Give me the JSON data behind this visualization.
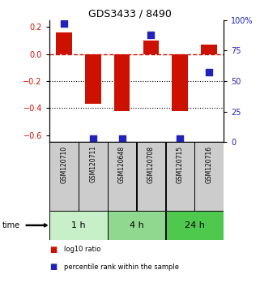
{
  "title": "GDS3433 / 8490",
  "samples": [
    "GSM120710",
    "GSM120711",
    "GSM120648",
    "GSM120708",
    "GSM120715",
    "GSM120716"
  ],
  "log10_ratio": [
    0.16,
    -0.37,
    -0.42,
    0.1,
    -0.42,
    0.07
  ],
  "percentile_rank": [
    97,
    3,
    3,
    88,
    3,
    57
  ],
  "groups": [
    {
      "label": "1 h",
      "indices": [
        0,
        1
      ],
      "color": "#c8f0c8"
    },
    {
      "label": "4 h",
      "indices": [
        2,
        3
      ],
      "color": "#90d890"
    },
    {
      "label": "24 h",
      "indices": [
        4,
        5
      ],
      "color": "#4ec94e"
    }
  ],
  "ylim_left": [
    -0.65,
    0.25
  ],
  "ylim_right": [
    0,
    100
  ],
  "left_yticks": [
    -0.6,
    -0.4,
    -0.2,
    0.0,
    0.2
  ],
  "right_yticks": [
    0,
    25,
    50,
    75,
    100
  ],
  "bar_color": "#cc1100",
  "dot_color": "#2222bb",
  "hline_y": 0.0,
  "dotted_lines": [
    -0.2,
    -0.4
  ],
  "bar_width": 0.55,
  "dot_size": 35,
  "sample_box_color": "#cccccc",
  "legend_items": [
    {
      "color": "#cc1100",
      "label": "log10 ratio"
    },
    {
      "color": "#2222bb",
      "label": "percentile rank within the sample"
    }
  ]
}
